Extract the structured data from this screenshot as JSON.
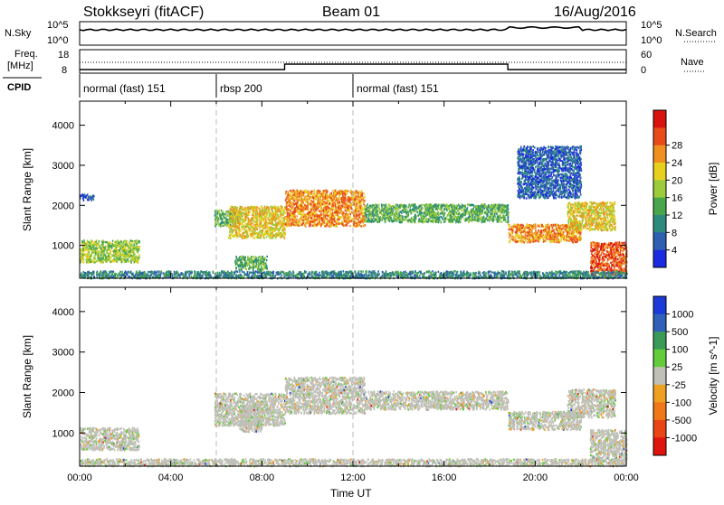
{
  "header": {
    "station": "Stokkseyri (fitACF)",
    "beam": "Beam 01",
    "date": "16/Aug/2016"
  },
  "labels": {
    "nsky": "N.Sky",
    "nsearch": "N.Search",
    "freq_line1": "Freq.",
    "freq_line2": "[MHz]",
    "nave": "Nave",
    "cpid": "CPID",
    "nsky_ticks": [
      "10^5",
      "10^0"
    ],
    "freq_ticks": [
      "18",
      "8"
    ],
    "nave_ticks": [
      "60",
      "0"
    ]
  },
  "cpid_segments": [
    {
      "label": "normal (fast) 151",
      "start_hour": 0
    },
    {
      "label": "rbsp 200",
      "start_hour": 6
    },
    {
      "label": "normal (fast) 151",
      "start_hour": 12
    }
  ],
  "chart_data": [
    {
      "type": "heatmap",
      "panel": "power",
      "xlabel": "",
      "ylabel": "Slant Range [km]",
      "xlim": [
        0,
        24
      ],
      "ylim": [
        180,
        4600
      ],
      "yticks": [
        "1000",
        "2000",
        "3000",
        "4000"
      ],
      "colorbar": {
        "label": "Power [dB]",
        "ticks": [
          "4",
          "8",
          "12",
          "16",
          "20",
          "24",
          "28"
        ],
        "colors": [
          "#1a2be0",
          "#2e5fb0",
          "#2c8a7e",
          "#4aa64c",
          "#9ccc3c",
          "#e8d020",
          "#f09020",
          "#e84a1a",
          "#d8120e"
        ]
      },
      "regions": [
        {
          "t0": 0.0,
          "t1": 2.6,
          "r0": 600,
          "r1": 1150,
          "level": 4
        },
        {
          "t0": 0.0,
          "t1": 0.6,
          "r0": 2150,
          "r1": 2300,
          "level": 1
        },
        {
          "t0": 5.9,
          "t1": 7.0,
          "r0": 1500,
          "r1": 1900,
          "level": 3
        },
        {
          "t0": 6.5,
          "t1": 9.0,
          "r0": 1200,
          "r1": 2000,
          "level": 5
        },
        {
          "t0": 6.8,
          "t1": 8.2,
          "r0": 400,
          "r1": 750,
          "level": 3
        },
        {
          "t0": 9.0,
          "t1": 12.5,
          "r0": 1500,
          "r1": 2400,
          "level": 6
        },
        {
          "t0": 12.5,
          "t1": 18.8,
          "r0": 1600,
          "r1": 2050,
          "level": 3
        },
        {
          "t0": 18.8,
          "t1": 22.0,
          "r0": 1100,
          "r1": 1550,
          "level": 6
        },
        {
          "t0": 21.4,
          "t1": 23.5,
          "r0": 1400,
          "r1": 2100,
          "level": 5
        },
        {
          "t0": 19.2,
          "t1": 22.0,
          "r0": 2200,
          "r1": 3500,
          "level": 1
        },
        {
          "t0": 22.4,
          "t1": 24.0,
          "r0": 300,
          "r1": 1100,
          "level": 7
        },
        {
          "t0": 0.0,
          "t1": 24.0,
          "r0": 200,
          "r1": 380,
          "level": 2
        }
      ]
    },
    {
      "type": "heatmap",
      "panel": "velocity",
      "xlabel": "Time UT",
      "ylabel": "Slant Range [km]",
      "xlim": [
        0,
        24
      ],
      "ylim": [
        180,
        4600
      ],
      "xticks": [
        "00:00",
        "04:00",
        "08:00",
        "12:00",
        "16:00",
        "20:00",
        "00:00"
      ],
      "yticks": [
        "1000",
        "2000",
        "3000",
        "4000"
      ],
      "colorbar": {
        "label": "Velocity [m s^-1]",
        "ticks": [
          "1000",
          "500",
          "100",
          "25",
          "-25",
          "-100",
          "-500",
          "-1000"
        ],
        "colors": [
          "#1c3ad8",
          "#3060b8",
          "#3a9a58",
          "#62cc3a",
          "#c0c0b8",
          "#f0a020",
          "#f07818",
          "#e84416",
          "#e0140e"
        ]
      },
      "regions": [
        {
          "t0": 0.0,
          "t1": 2.6,
          "r0": 600,
          "r1": 1150,
          "level": 4
        },
        {
          "t0": 5.9,
          "t1": 9.0,
          "r0": 1200,
          "r1": 2000,
          "level": 4
        },
        {
          "t0": 7.0,
          "t1": 8.0,
          "r0": 1050,
          "r1": 1700,
          "level": 3
        },
        {
          "t0": 9.0,
          "t1": 12.5,
          "r0": 1500,
          "r1": 2400,
          "level": 4
        },
        {
          "t0": 12.5,
          "t1": 18.8,
          "r0": 1600,
          "r1": 2050,
          "level": 4
        },
        {
          "t0": 18.8,
          "t1": 22.0,
          "r0": 1100,
          "r1": 1550,
          "level": 4
        },
        {
          "t0": 21.4,
          "t1": 23.5,
          "r0": 1400,
          "r1": 2100,
          "level": 4
        },
        {
          "t0": 22.4,
          "t1": 24.0,
          "r0": 300,
          "r1": 1100,
          "level": 4
        },
        {
          "t0": 0.0,
          "t1": 24.0,
          "r0": 200,
          "r1": 380,
          "level": 3
        }
      ]
    }
  ]
}
